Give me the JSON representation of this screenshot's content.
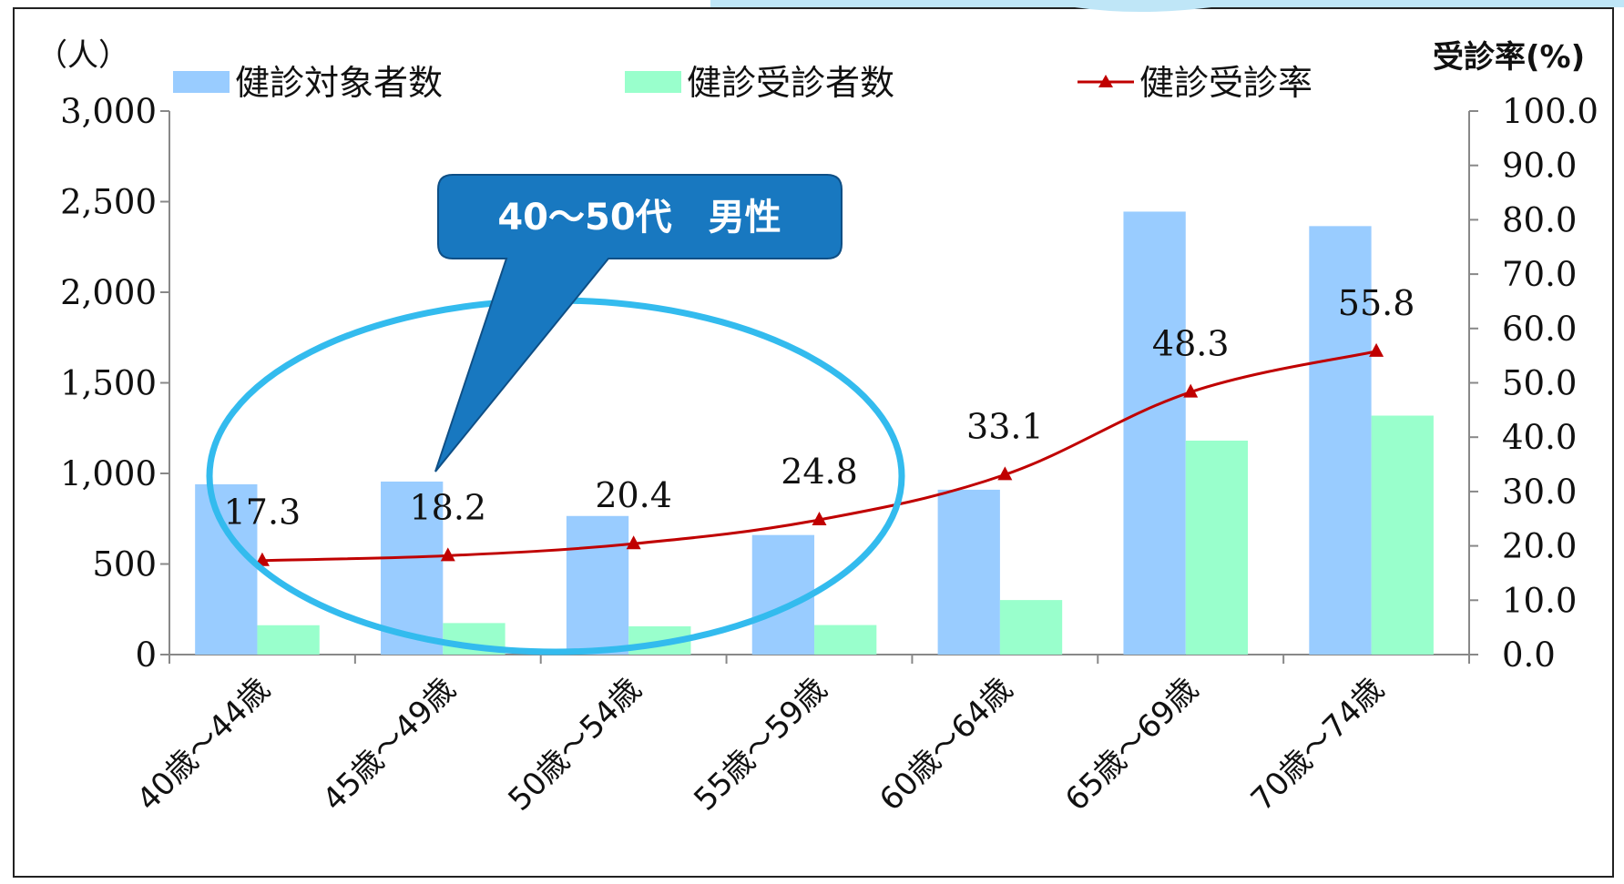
{
  "chart_data": {
    "type": "bar",
    "categories": [
      "40歳～44歳",
      "45歳～49歳",
      "50歳～54歳",
      "55歳～59歳",
      "60歳～64歳",
      "65歳～69歳",
      "70歳～74歳"
    ],
    "series": [
      {
        "name": "健診対象者数",
        "type": "bar",
        "axis": "left",
        "color": "#99ccff",
        "values": [
          940,
          955,
          765,
          660,
          910,
          2445,
          2365
        ]
      },
      {
        "name": "健診受診者数",
        "type": "bar",
        "axis": "left",
        "color": "#99ffcc",
        "values": [
          162,
          174,
          156,
          163,
          301,
          1181,
          1319
        ]
      },
      {
        "name": "健診受診率",
        "type": "line",
        "axis": "right",
        "color": "#c00000",
        "marker": "triangle",
        "values": [
          17.3,
          18.2,
          20.4,
          24.8,
          33.1,
          48.3,
          55.8
        ]
      }
    ],
    "left_axis": {
      "unit": "（人）",
      "ylim": [
        0,
        3000
      ],
      "ticks": [
        "0",
        "500",
        "1,000",
        "1,500",
        "2,000",
        "2,500",
        "3,000"
      ]
    },
    "right_axis": {
      "unit": "受診率(%)",
      "ylim": [
        0,
        100
      ],
      "ticks": [
        "0.0",
        "10.0",
        "20.0",
        "30.0",
        "40.0",
        "50.0",
        "60.0",
        "70.0",
        "80.0",
        "90.0",
        "100.0"
      ]
    },
    "data_labels": [
      "17.3",
      "18.2",
      "20.4",
      "24.8",
      "33.1",
      "48.3",
      "55.8"
    ],
    "legend_position": "top",
    "grid": false,
    "annotation": {
      "text": "40～50代　男性",
      "highlighted_categories": [
        "40歳～44歳",
        "45歳～49歳",
        "50歳～54歳",
        "55歳～59歳"
      ]
    }
  }
}
